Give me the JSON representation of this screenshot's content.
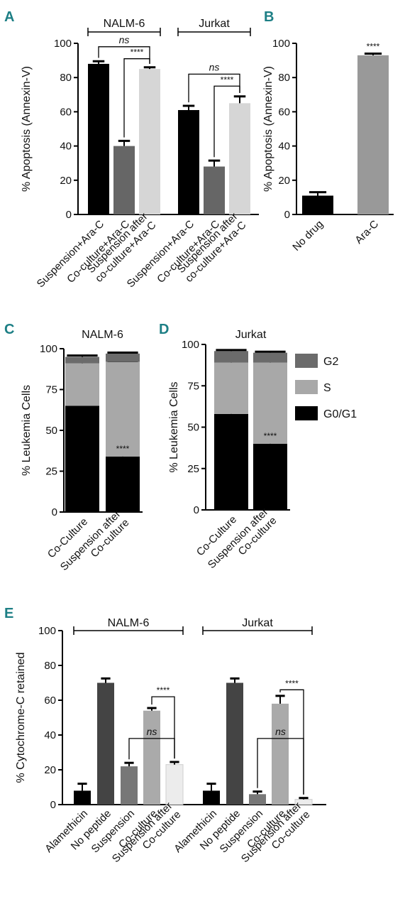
{
  "panels": [
    {
      "id": "A",
      "letter": "A",
      "type": "bar",
      "ylabel": "% Apoptosis (Annexin-V)",
      "ylim": [
        0,
        100
      ],
      "yticks": [
        0,
        20,
        40,
        60,
        80,
        100
      ],
      "categories": [
        "Suspension+Ara-C",
        "Co-culture+Ara-C",
        "Suspension after co-culture+Ara-C",
        "Suspension+Ara-C",
        "Co-culture+Ara-C",
        "Suspension after co-culture+Ara-C"
      ],
      "cat_lines": [
        [
          "Suspension+Ara-C"
        ],
        [
          "Co-culture+Ara-C"
        ],
        [
          "Suspension after",
          "co-culture+Ara-C"
        ],
        [
          "Suspension+Ara-C"
        ],
        [
          "Co-culture+Ara-C"
        ],
        [
          "Suspension after",
          "co-culture+Ara-C"
        ]
      ],
      "values": [
        88,
        40,
        85,
        61,
        28,
        65
      ],
      "errors": [
        1.5,
        3,
        1,
        2.5,
        3.5,
        4
      ],
      "colors": [
        "#000000",
        "#666666",
        "#d6d6d6",
        "#000000",
        "#666666",
        "#d6d6d6"
      ],
      "groups": [
        {
          "label": "NALM-6",
          "from": 0,
          "to": 2
        },
        {
          "label": "Jurkat",
          "from": 3,
          "to": 5
        }
      ],
      "comparisons": [
        {
          "a": 0,
          "b": 2,
          "label": "ns",
          "y": 98
        },
        {
          "a": 1,
          "b": 2,
          "label": "****",
          "y": 91
        },
        {
          "a": 3,
          "b": 5,
          "label": "ns",
          "y": 82
        },
        {
          "a": 4,
          "b": 5,
          "label": "****",
          "y": 75
        }
      ]
    },
    {
      "id": "B",
      "letter": "B",
      "type": "bar",
      "ylabel": "% Apoptosis (Annexin-V)",
      "ylim": [
        0,
        100
      ],
      "yticks": [
        0,
        20,
        40,
        60,
        80,
        100
      ],
      "categories": [
        "No drug",
        "Ara-C"
      ],
      "cat_lines": [
        [
          "No drug"
        ],
        [
          "Ara-C"
        ]
      ],
      "values": [
        11,
        93
      ],
      "errors": [
        2,
        1
      ],
      "colors": [
        "#000000",
        "#999999"
      ],
      "annotations": [
        {
          "bar": 1,
          "label": "****"
        }
      ]
    },
    {
      "id": "C",
      "letter": "C",
      "type": "stacked-bar",
      "title": "NALM-6",
      "ylabel": "% Leukemia Cells",
      "ylim": [
        0,
        100
      ],
      "yticks": [
        0,
        25,
        50,
        75,
        100
      ],
      "categories": [
        "Co-Culture",
        "Suspension after Co-culture"
      ],
      "cat_lines": [
        [
          "Co-Culture"
        ],
        [
          "Suspension after",
          "Co-culture"
        ]
      ],
      "series": [
        {
          "name": "G0/G1",
          "values": [
            65,
            34
          ]
        },
        {
          "name": "S",
          "values": [
            26,
            58
          ]
        },
        {
          "name": "G2",
          "values": [
            4,
            5
          ]
        }
      ],
      "errors": [
        [
          1.2,
          0.8
        ],
        [
          1.5,
          0.5
        ],
        [
          0.8,
          0.6
        ]
      ],
      "annotations": [
        {
          "bar": 1,
          "label": "****"
        }
      ]
    },
    {
      "id": "D",
      "letter": "D",
      "type": "stacked-bar",
      "title": "Jurkat",
      "ylabel": "% Leukemia Cells",
      "ylim": [
        0,
        100
      ],
      "yticks": [
        0,
        25,
        50,
        75,
        100
      ],
      "categories": [
        "Co-Culture",
        "Suspension after Co-culture"
      ],
      "cat_lines": [
        [
          "Co-Culture"
        ],
        [
          "Suspension after",
          "Co-culture"
        ]
      ],
      "series": [
        {
          "name": "G0/G1",
          "values": [
            58,
            40
          ]
        },
        {
          "name": "S",
          "values": [
            31,
            49
          ]
        },
        {
          "name": "G2",
          "values": [
            7,
            6
          ]
        }
      ],
      "errors": [
        [
          1.5,
          0.8
        ],
        [
          1.0,
          0.8
        ],
        [
          0.6,
          0.6
        ]
      ],
      "annotations": [
        {
          "bar": 1,
          "label": "****"
        }
      ],
      "legend_position": "right"
    },
    {
      "id": "E",
      "letter": "E",
      "type": "bar",
      "ylabel": "% Cytochrome-C retained",
      "ylim": [
        0,
        100
      ],
      "yticks": [
        0,
        20,
        40,
        60,
        80,
        100
      ],
      "categories": [
        "Alamethicin",
        "No peptide",
        "Suspension",
        "Co-culture",
        "Suspension after Co-culture",
        "Alamethicin",
        "No peptide",
        "Suspension",
        "Co-culture",
        "Suspension after Co-culture"
      ],
      "cat_lines": [
        [
          "Alamethicin"
        ],
        [
          "No peptide"
        ],
        [
          "Suspension"
        ],
        [
          "Co-culture"
        ],
        [
          "Suspension after",
          "Co-culture"
        ],
        [
          "Alamethicin"
        ],
        [
          "No peptide"
        ],
        [
          "Suspension"
        ],
        [
          "Co-culture"
        ],
        [
          "Suspension after",
          "Co-culture"
        ]
      ],
      "values": [
        8,
        70,
        22,
        54,
        23,
        8,
        70,
        6,
        58,
        3
      ],
      "errors": [
        4,
        2.5,
        2,
        1.5,
        1.5,
        4,
        2.5,
        1.5,
        4.5,
        0.8
      ],
      "colors": [
        "#000000",
        "#444444",
        "#777777",
        "#aaaaaa",
        "#ececec",
        "#000000",
        "#444444",
        "#777777",
        "#aaaaaa",
        "#ececec"
      ],
      "groups": [
        {
          "label": "NALM-6",
          "from": 0,
          "to": 4
        },
        {
          "label": "Jurkat",
          "from": 5,
          "to": 9
        }
      ],
      "comparisons": [
        {
          "a": 2,
          "b": 4,
          "label": "ns",
          "y": 38
        },
        {
          "a": 3,
          "b": 4,
          "label": "****",
          "y": 62
        },
        {
          "a": 7,
          "b": 9,
          "label": "ns",
          "y": 38
        },
        {
          "a": 8,
          "b": 9,
          "label": "****",
          "y": 66
        }
      ]
    }
  ],
  "legend": [
    {
      "name": "G2",
      "color": "#6b6b6b"
    },
    {
      "name": "S",
      "color": "#a8a8a8"
    },
    {
      "name": "G0/G1",
      "color": "#000000"
    }
  ]
}
